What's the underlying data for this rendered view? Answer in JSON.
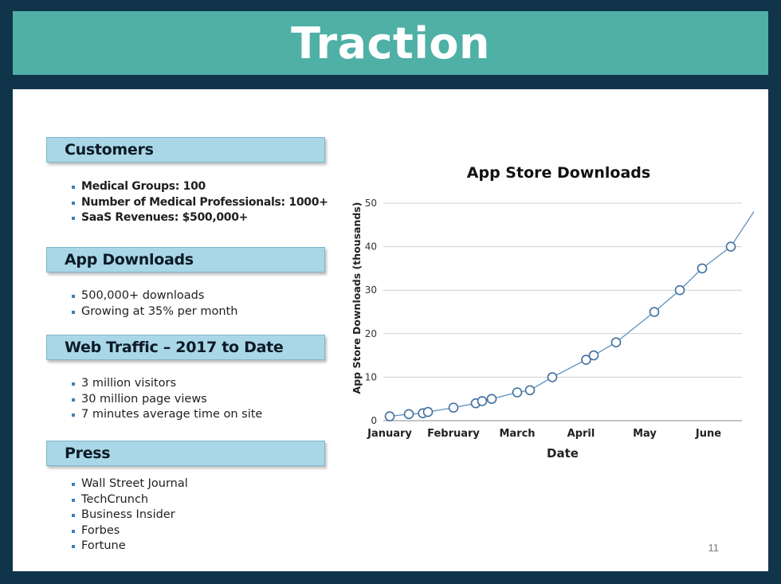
{
  "title": "Traction",
  "sections": {
    "customers": {
      "heading": "Customers",
      "items": [
        "Medical Groups: 100",
        "Number of Medical Professionals: 1000+",
        "SaaS Revenues: $500,000+"
      ]
    },
    "app_downloads": {
      "heading": "App Downloads",
      "items": [
        "500,000+ downloads",
        "Growing at 35% per month"
      ]
    },
    "web_traffic": {
      "heading": "Web Traffic – 2017 to Date",
      "items": [
        "3 million visitors",
        "30 million page views",
        "7 minutes average time on site"
      ]
    },
    "press": {
      "heading": "Press",
      "items": [
        "Wall Street Journal",
        "TechCrunch",
        "Business Insider",
        "Forbes",
        "Fortune"
      ]
    }
  },
  "page_number": "11",
  "chart_data": {
    "type": "line",
    "title": "App Store Downloads",
    "xlabel": "Date",
    "ylabel": "App Store Downloads (thousands)",
    "x_ticks": [
      "January",
      "February",
      "March",
      "April",
      "May",
      "June"
    ],
    "y_ticks": [
      0,
      10,
      20,
      30,
      40,
      50
    ],
    "ylim": [
      0,
      50
    ],
    "xlim": [
      0.9,
      6.65
    ],
    "grid": true,
    "markers": "open-circle",
    "series": [
      {
        "points": [
          {
            "x": 1.0,
            "y": 1
          },
          {
            "x": 1.3,
            "y": 1.5
          },
          {
            "x": 1.52,
            "y": 1.7
          },
          {
            "x": 1.6,
            "y": 2
          },
          {
            "x": 2.0,
            "y": 3
          },
          {
            "x": 2.35,
            "y": 4
          },
          {
            "x": 2.45,
            "y": 4.5
          },
          {
            "x": 2.6,
            "y": 5
          },
          {
            "x": 3.0,
            "y": 6.5
          },
          {
            "x": 3.2,
            "y": 7
          },
          {
            "x": 3.55,
            "y": 10
          },
          {
            "x": 4.08,
            "y": 14
          },
          {
            "x": 4.2,
            "y": 15
          },
          {
            "x": 4.55,
            "y": 18
          },
          {
            "x": 5.15,
            "y": 25
          },
          {
            "x": 5.55,
            "y": 30
          },
          {
            "x": 5.9,
            "y": 35
          },
          {
            "x": 6.35,
            "y": 40
          },
          {
            "x": 6.8,
            "y": 50
          }
        ]
      }
    ],
    "colors": {
      "line": "#5b8fc0",
      "marker_fill": "#ffffff",
      "grid": "#cfcfcf"
    }
  }
}
